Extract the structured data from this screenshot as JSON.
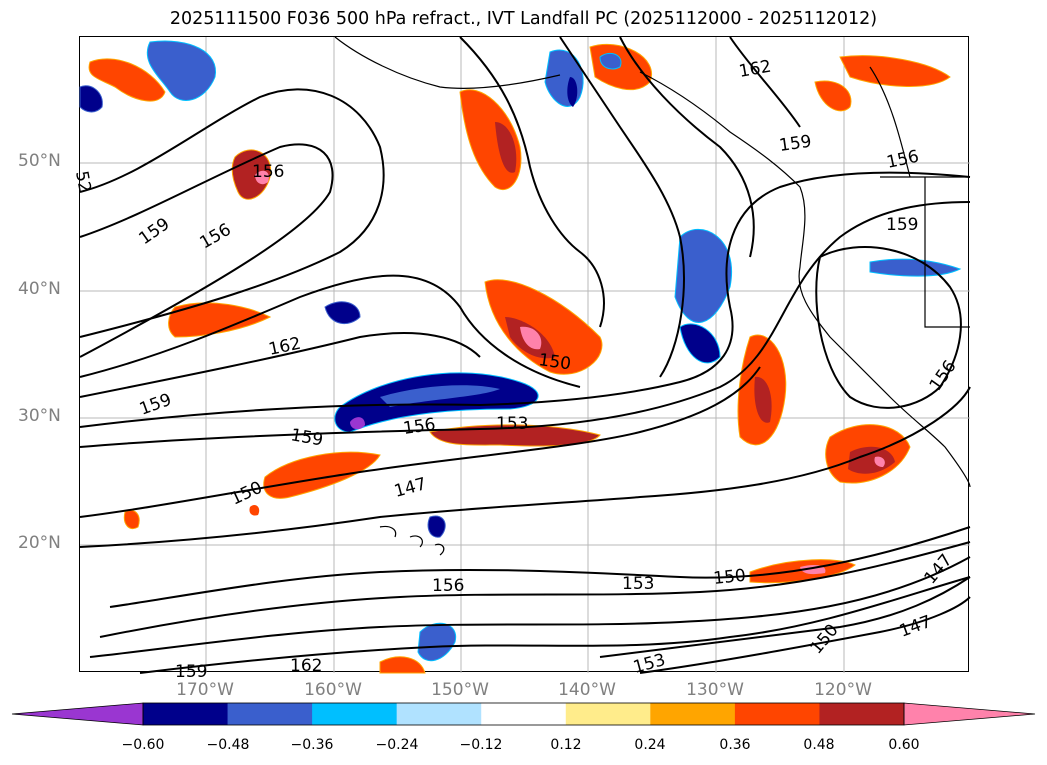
{
  "title": "2025111500 F036 500 hPa refract., IVT Landfall PC (2025112000 - 2025112012)",
  "lat_labels": [
    "50°N",
    "40°N",
    "30°N",
    "20°N"
  ],
  "lon_labels": [
    "170°W",
    "160°W",
    "150°W",
    "140°W",
    "130°W",
    "120°W"
  ],
  "colorbar": {
    "ticks": [
      "−0.60",
      "−0.48",
      "−0.36",
      "−0.24",
      "−0.12",
      "0.12",
      "0.24",
      "0.36",
      "0.48",
      "0.60"
    ],
    "colors": [
      "#9a36d1",
      "#00008b",
      "#3a5fcd",
      "#00bfff",
      "#b0e2ff",
      "#ffffff",
      "#ffec8b",
      "#ffa500",
      "#ff4500",
      "#b22222",
      "#ff82ab"
    ]
  },
  "contour_labels": [
    "162",
    "159",
    "156",
    "52",
    "156",
    "159",
    "156",
    "159",
    "162",
    "150",
    "159",
    "159",
    "156",
    "153",
    "150",
    "147",
    "156",
    "153",
    "150",
    "159",
    "162",
    "153",
    "150",
    "147",
    "147",
    "156"
  ]
}
